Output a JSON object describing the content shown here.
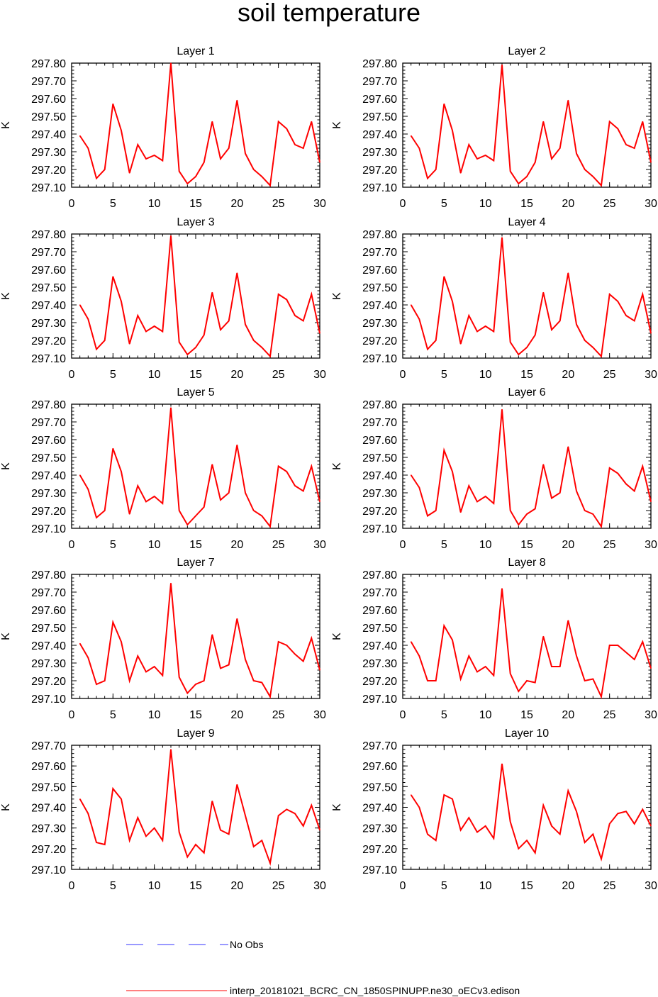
{
  "title": "soil temperature",
  "legend": [
    {
      "label": "No Obs",
      "color": "#3333ff",
      "style": "dashed"
    },
    {
      "label": "interp_20181021_BCRC_CN_1850SPINUPP.ne30_oECv3.edison",
      "color": "#ff0000",
      "style": "solid"
    }
  ],
  "chart_data": [
    {
      "type": "line",
      "title": "Layer 1",
      "xlabel": "",
      "ylabel": "K",
      "xlim": [
        0,
        30
      ],
      "ylim": [
        297.1,
        297.8
      ],
      "yticks": [
        "297.10",
        "297.20",
        "297.30",
        "297.40",
        "297.50",
        "297.60",
        "297.70",
        "297.80"
      ],
      "xticks": [
        "0",
        "5",
        "10",
        "15",
        "20",
        "25",
        "30"
      ],
      "x": [
        1,
        2,
        3,
        4,
        5,
        6,
        7,
        8,
        9,
        10,
        11,
        12,
        13,
        14,
        15,
        16,
        17,
        18,
        19,
        20,
        21,
        22,
        23,
        24,
        25,
        26,
        27,
        28,
        29,
        30
      ],
      "series": [
        {
          "color": "#ff0000",
          "values": [
            297.39,
            297.32,
            297.15,
            297.2,
            297.57,
            297.42,
            297.18,
            297.34,
            297.26,
            297.28,
            297.25,
            297.8,
            297.19,
            297.12,
            297.16,
            297.24,
            297.47,
            297.26,
            297.32,
            297.59,
            297.29,
            297.2,
            297.16,
            297.11,
            297.47,
            297.43,
            297.34,
            297.32,
            297.47,
            297.24
          ]
        }
      ]
    },
    {
      "type": "line",
      "title": "Layer 2",
      "xlabel": "",
      "ylabel": "K",
      "xlim": [
        0,
        30
      ],
      "ylim": [
        297.1,
        297.8
      ],
      "yticks": [
        "297.10",
        "297.20",
        "297.30",
        "297.40",
        "297.50",
        "297.60",
        "297.70",
        "297.80"
      ],
      "xticks": [
        "0",
        "5",
        "10",
        "15",
        "20",
        "25",
        "30"
      ],
      "x": [
        1,
        2,
        3,
        4,
        5,
        6,
        7,
        8,
        9,
        10,
        11,
        12,
        13,
        14,
        15,
        16,
        17,
        18,
        19,
        20,
        21,
        22,
        23,
        24,
        25,
        26,
        27,
        28,
        29,
        30
      ],
      "series": [
        {
          "color": "#ff0000",
          "values": [
            297.39,
            297.32,
            297.15,
            297.2,
            297.57,
            297.42,
            297.18,
            297.34,
            297.26,
            297.28,
            297.25,
            297.79,
            297.19,
            297.12,
            297.16,
            297.24,
            297.47,
            297.26,
            297.32,
            297.59,
            297.29,
            297.2,
            297.16,
            297.11,
            297.47,
            297.43,
            297.34,
            297.32,
            297.47,
            297.24
          ]
        }
      ]
    },
    {
      "type": "line",
      "title": "Layer 3",
      "xlabel": "",
      "ylabel": "K",
      "xlim": [
        0,
        30
      ],
      "ylim": [
        297.1,
        297.8
      ],
      "yticks": [
        "297.10",
        "297.20",
        "297.30",
        "297.40",
        "297.50",
        "297.60",
        "297.70",
        "297.80"
      ],
      "xticks": [
        "0",
        "5",
        "10",
        "15",
        "20",
        "25",
        "30"
      ],
      "x": [
        1,
        2,
        3,
        4,
        5,
        6,
        7,
        8,
        9,
        10,
        11,
        12,
        13,
        14,
        15,
        16,
        17,
        18,
        19,
        20,
        21,
        22,
        23,
        24,
        25,
        26,
        27,
        28,
        29,
        30
      ],
      "series": [
        {
          "color": "#ff0000",
          "values": [
            297.4,
            297.32,
            297.15,
            297.2,
            297.56,
            297.42,
            297.18,
            297.34,
            297.25,
            297.28,
            297.25,
            297.79,
            297.19,
            297.12,
            297.16,
            297.23,
            297.47,
            297.26,
            297.31,
            297.58,
            297.29,
            297.2,
            297.16,
            297.11,
            297.46,
            297.43,
            297.34,
            297.31,
            297.46,
            297.24
          ]
        }
      ]
    },
    {
      "type": "line",
      "title": "Layer 4",
      "xlabel": "",
      "ylabel": "K",
      "xlim": [
        0,
        30
      ],
      "ylim": [
        297.1,
        297.8
      ],
      "yticks": [
        "297.10",
        "297.20",
        "297.30",
        "297.40",
        "297.50",
        "297.60",
        "297.70",
        "297.80"
      ],
      "xticks": [
        "0",
        "5",
        "10",
        "15",
        "20",
        "25",
        "30"
      ],
      "x": [
        1,
        2,
        3,
        4,
        5,
        6,
        7,
        8,
        9,
        10,
        11,
        12,
        13,
        14,
        15,
        16,
        17,
        18,
        19,
        20,
        21,
        22,
        23,
        24,
        25,
        26,
        27,
        28,
        29,
        30
      ],
      "series": [
        {
          "color": "#ff0000",
          "values": [
            297.4,
            297.32,
            297.15,
            297.2,
            297.56,
            297.42,
            297.18,
            297.34,
            297.25,
            297.28,
            297.25,
            297.78,
            297.19,
            297.12,
            297.16,
            297.23,
            297.47,
            297.26,
            297.31,
            297.58,
            297.29,
            297.2,
            297.16,
            297.11,
            297.46,
            297.42,
            297.34,
            297.31,
            297.46,
            297.24
          ]
        }
      ]
    },
    {
      "type": "line",
      "title": "Layer 5",
      "xlabel": "",
      "ylabel": "K",
      "xlim": [
        0,
        30
      ],
      "ylim": [
        297.1,
        297.8
      ],
      "yticks": [
        "297.10",
        "297.20",
        "297.30",
        "297.40",
        "297.50",
        "297.60",
        "297.70",
        "297.80"
      ],
      "xticks": [
        "0",
        "5",
        "10",
        "15",
        "20",
        "25",
        "30"
      ],
      "x": [
        1,
        2,
        3,
        4,
        5,
        6,
        7,
        8,
        9,
        10,
        11,
        12,
        13,
        14,
        15,
        16,
        17,
        18,
        19,
        20,
        21,
        22,
        23,
        24,
        25,
        26,
        27,
        28,
        29,
        30
      ],
      "series": [
        {
          "color": "#ff0000",
          "values": [
            297.4,
            297.32,
            297.16,
            297.2,
            297.55,
            297.42,
            297.18,
            297.34,
            297.25,
            297.28,
            297.24,
            297.78,
            297.2,
            297.12,
            297.17,
            297.22,
            297.46,
            297.26,
            297.3,
            297.57,
            297.3,
            297.2,
            297.17,
            297.11,
            297.45,
            297.42,
            297.34,
            297.31,
            297.45,
            297.25
          ]
        }
      ]
    },
    {
      "type": "line",
      "title": "Layer 6",
      "xlabel": "",
      "ylabel": "K",
      "xlim": [
        0,
        30
      ],
      "ylim": [
        297.1,
        297.8
      ],
      "yticks": [
        "297.10",
        "297.20",
        "297.30",
        "297.40",
        "297.50",
        "297.60",
        "297.70",
        "297.80"
      ],
      "xticks": [
        "0",
        "5",
        "10",
        "15",
        "20",
        "25",
        "30"
      ],
      "x": [
        1,
        2,
        3,
        4,
        5,
        6,
        7,
        8,
        9,
        10,
        11,
        12,
        13,
        14,
        15,
        16,
        17,
        18,
        19,
        20,
        21,
        22,
        23,
        24,
        25,
        26,
        27,
        28,
        29,
        30
      ],
      "series": [
        {
          "color": "#ff0000",
          "values": [
            297.4,
            297.33,
            297.17,
            297.2,
            297.54,
            297.42,
            297.19,
            297.34,
            297.25,
            297.28,
            297.24,
            297.77,
            297.2,
            297.12,
            297.18,
            297.21,
            297.46,
            297.27,
            297.3,
            297.56,
            297.31,
            297.2,
            297.18,
            297.11,
            297.44,
            297.41,
            297.35,
            297.31,
            297.45,
            297.25
          ]
        }
      ]
    },
    {
      "type": "line",
      "title": "Layer 7",
      "xlabel": "",
      "ylabel": "K",
      "xlim": [
        0,
        30
      ],
      "ylim": [
        297.1,
        297.8
      ],
      "yticks": [
        "297.10",
        "297.20",
        "297.30",
        "297.40",
        "297.50",
        "297.60",
        "297.70",
        "297.80"
      ],
      "xticks": [
        "0",
        "5",
        "10",
        "15",
        "20",
        "25",
        "30"
      ],
      "x": [
        1,
        2,
        3,
        4,
        5,
        6,
        7,
        8,
        9,
        10,
        11,
        12,
        13,
        14,
        15,
        16,
        17,
        18,
        19,
        20,
        21,
        22,
        23,
        24,
        25,
        26,
        27,
        28,
        29,
        30
      ],
      "series": [
        {
          "color": "#ff0000",
          "values": [
            297.41,
            297.33,
            297.18,
            297.2,
            297.53,
            297.42,
            297.2,
            297.34,
            297.25,
            297.28,
            297.23,
            297.75,
            297.22,
            297.13,
            297.18,
            297.2,
            297.46,
            297.27,
            297.29,
            297.55,
            297.32,
            297.2,
            297.19,
            297.11,
            297.42,
            297.4,
            297.35,
            297.31,
            297.44,
            297.26
          ]
        }
      ]
    },
    {
      "type": "line",
      "title": "Layer 8",
      "xlabel": "",
      "ylabel": "K",
      "xlim": [
        0,
        30
      ],
      "ylim": [
        297.1,
        297.8
      ],
      "yticks": [
        "297.10",
        "297.20",
        "297.30",
        "297.40",
        "297.50",
        "297.60",
        "297.70",
        "297.80"
      ],
      "xticks": [
        "0",
        "5",
        "10",
        "15",
        "20",
        "25",
        "30"
      ],
      "x": [
        1,
        2,
        3,
        4,
        5,
        6,
        7,
        8,
        9,
        10,
        11,
        12,
        13,
        14,
        15,
        16,
        17,
        18,
        19,
        20,
        21,
        22,
        23,
        24,
        25,
        26,
        27,
        28,
        29,
        30
      ],
      "series": [
        {
          "color": "#ff0000",
          "values": [
            297.42,
            297.34,
            297.2,
            297.2,
            297.51,
            297.43,
            297.21,
            297.34,
            297.25,
            297.28,
            297.23,
            297.72,
            297.24,
            297.14,
            297.2,
            297.19,
            297.45,
            297.28,
            297.28,
            297.54,
            297.34,
            297.2,
            297.21,
            297.11,
            297.4,
            297.4,
            297.36,
            297.32,
            297.42,
            297.27
          ]
        }
      ]
    },
    {
      "type": "line",
      "title": "Layer 9",
      "xlabel": "",
      "ylabel": "K",
      "xlim": [
        0,
        30
      ],
      "ylim": [
        297.1,
        297.7
      ],
      "yticks": [
        "297.10",
        "297.20",
        "297.30",
        "297.40",
        "297.50",
        "297.60",
        "297.70"
      ],
      "xticks": [
        "0",
        "5",
        "10",
        "15",
        "20",
        "25",
        "30"
      ],
      "x": [
        1,
        2,
        3,
        4,
        5,
        6,
        7,
        8,
        9,
        10,
        11,
        12,
        13,
        14,
        15,
        16,
        17,
        18,
        19,
        20,
        21,
        22,
        23,
        24,
        25,
        26,
        27,
        28,
        29,
        30
      ],
      "series": [
        {
          "color": "#ff0000",
          "values": [
            297.44,
            297.37,
            297.23,
            297.22,
            297.49,
            297.44,
            297.24,
            297.35,
            297.26,
            297.3,
            297.24,
            297.68,
            297.28,
            297.16,
            297.22,
            297.18,
            297.43,
            297.29,
            297.27,
            297.51,
            297.36,
            297.21,
            297.24,
            297.13,
            297.36,
            297.39,
            297.37,
            297.31,
            297.41,
            297.29
          ]
        }
      ]
    },
    {
      "type": "line",
      "title": "Layer 10",
      "xlabel": "",
      "ylabel": "K",
      "xlim": [
        0,
        30
      ],
      "ylim": [
        297.1,
        297.7
      ],
      "yticks": [
        "297.10",
        "297.20",
        "297.30",
        "297.40",
        "297.50",
        "297.60",
        "297.70"
      ],
      "xticks": [
        "0",
        "5",
        "10",
        "15",
        "20",
        "25",
        "30"
      ],
      "x": [
        1,
        2,
        3,
        4,
        5,
        6,
        7,
        8,
        9,
        10,
        11,
        12,
        13,
        14,
        15,
        16,
        17,
        18,
        19,
        20,
        21,
        22,
        23,
        24,
        25,
        26,
        27,
        28,
        29,
        30
      ],
      "series": [
        {
          "color": "#ff0000",
          "values": [
            297.46,
            297.4,
            297.27,
            297.24,
            297.46,
            297.44,
            297.29,
            297.35,
            297.28,
            297.31,
            297.25,
            297.61,
            297.33,
            297.2,
            297.24,
            297.18,
            297.41,
            297.31,
            297.27,
            297.48,
            297.38,
            297.23,
            297.27,
            297.15,
            297.32,
            297.37,
            297.38,
            297.32,
            297.39,
            297.31
          ]
        }
      ]
    }
  ]
}
